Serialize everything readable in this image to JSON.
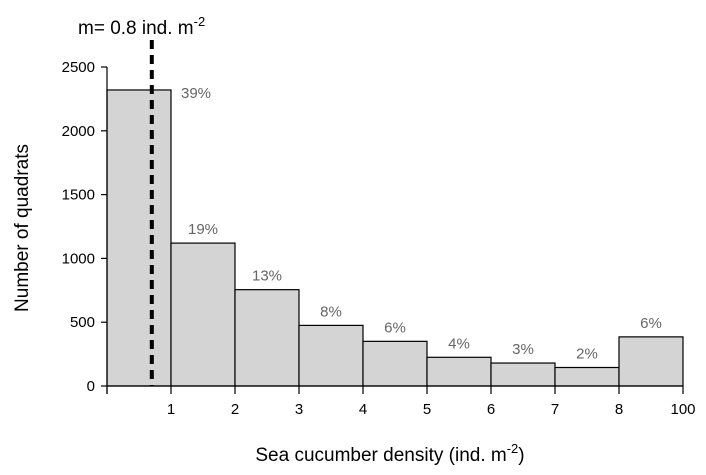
{
  "chart_data": {
    "type": "bar",
    "categories": [
      "0-1",
      "1-2",
      "2-3",
      "3-4",
      "4-5",
      "5-6",
      "6-7",
      "7-8",
      "8-100"
    ],
    "values": [
      2320,
      1120,
      755,
      475,
      350,
      225,
      180,
      145,
      385
    ],
    "percent_labels": [
      "39%",
      "19%",
      "13%",
      "8%",
      "6%",
      "4%",
      "3%",
      "2%",
      "6%"
    ],
    "xtick_labels": [
      "1",
      "2",
      "3",
      "4",
      "5",
      "6",
      "7",
      "8",
      "100"
    ],
    "ytick_labels": [
      "0",
      "500",
      "1000",
      "1500",
      "2000",
      "2500"
    ],
    "yticks": [
      0,
      500,
      1000,
      1500,
      2000,
      2500
    ],
    "ylim": [
      0,
      2500
    ],
    "xlabel_main": "Sea cucumber density (ind. m",
    "xlabel_sup": "-2",
    "xlabel_end": ")",
    "ylabel": "Number of quadrats",
    "mean_line": {
      "x": 0.7,
      "label_main": "m= 0.8 ind. m",
      "label_sup": "-2"
    },
    "grid": false,
    "bar_color": "#d4d4d4",
    "bar_edge_color": "#000000"
  }
}
